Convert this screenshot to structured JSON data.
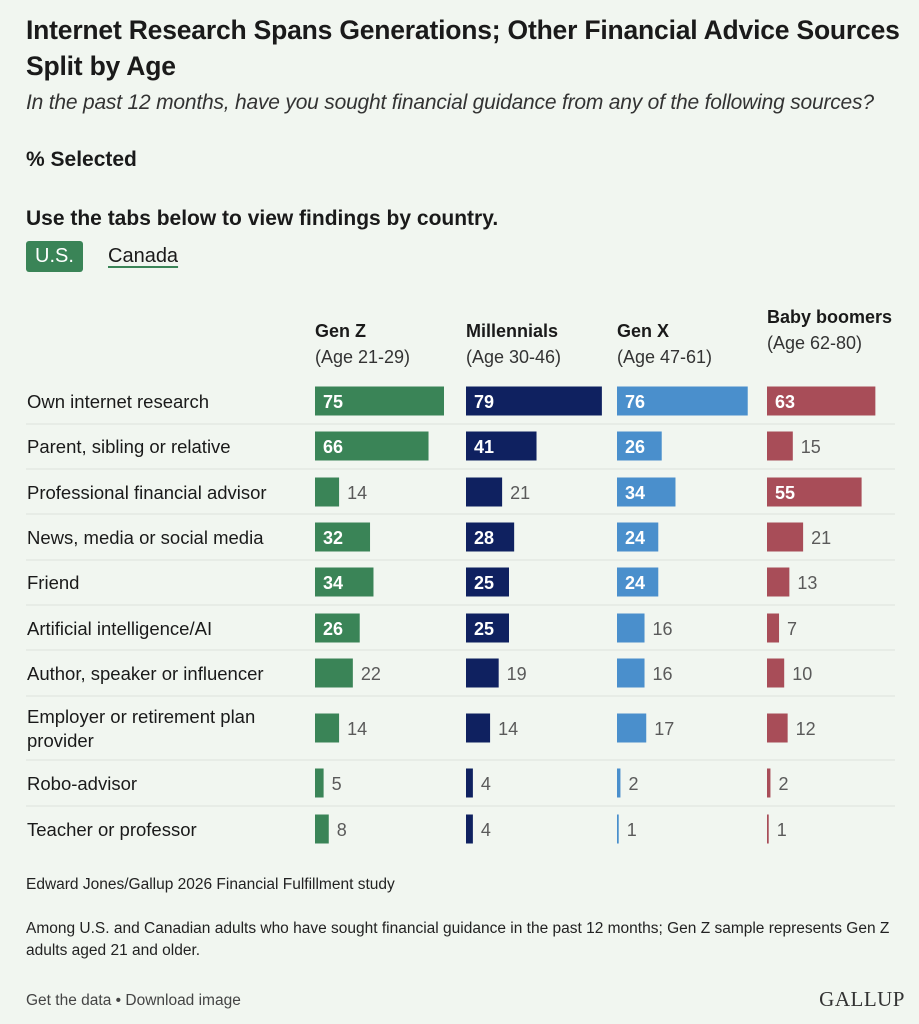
{
  "title": "Internet Research Spans Generations; Other Financial Advice Sources Split by Age",
  "subtitle": "In the past 12 months, have you sought financial guidance from any of the following sources?",
  "measure": "% Selected",
  "tabs": {
    "heading": "Use the tabs below to view findings by country.",
    "items": [
      {
        "label": "U.S.",
        "active": true
      },
      {
        "label": "Canada",
        "active": false
      }
    ]
  },
  "colors": {
    "gen_z": "#3a8457",
    "millennials": "#0f2160",
    "gen_x": "#4a8fcc",
    "boomers": "#a84d58",
    "grid": "#dde3dc",
    "label_dark": "#5a5a5a"
  },
  "chart_data": {
    "type": "bar",
    "orientation": "horizontal",
    "layout": "small-multiples",
    "categories": [
      "Own internet research",
      "Parent, sibling or relative",
      "Professional financial advisor",
      "News, media or social media",
      "Friend",
      "Artificial intelligence/AI",
      "Author, speaker or influencer",
      "Employer or retirement plan provider",
      "Robo-advisor",
      "Teacher or professor"
    ],
    "series": [
      {
        "name": "Gen Z",
        "subtitle": "(Age 21-29)",
        "values": [
          75,
          66,
          14,
          32,
          34,
          26,
          22,
          14,
          5,
          8
        ]
      },
      {
        "name": "Millennials",
        "subtitle": "(Age 30-46)",
        "values": [
          79,
          41,
          21,
          28,
          25,
          25,
          19,
          14,
          4,
          4
        ]
      },
      {
        "name": "Gen X",
        "subtitle": "(Age 47-61)",
        "values": [
          76,
          26,
          34,
          24,
          24,
          16,
          16,
          17,
          2,
          1
        ]
      },
      {
        "name": "Baby boomers",
        "subtitle": "(Age 62-80)",
        "values": [
          63,
          15,
          55,
          21,
          13,
          7,
          10,
          12,
          2,
          1
        ]
      }
    ],
    "xlim": [
      0,
      100
    ]
  },
  "footer": {
    "source": "Edward Jones/Gallup 2026 Financial Fulfillment study",
    "note": "Among U.S. and Canadian adults who have sought financial guidance in the past 12 months; Gen Z sample represents Gen Z adults aged 21 and older.",
    "get_data": "Get the data",
    "separator": "•",
    "download": "Download image",
    "logo": "GALLUP"
  }
}
